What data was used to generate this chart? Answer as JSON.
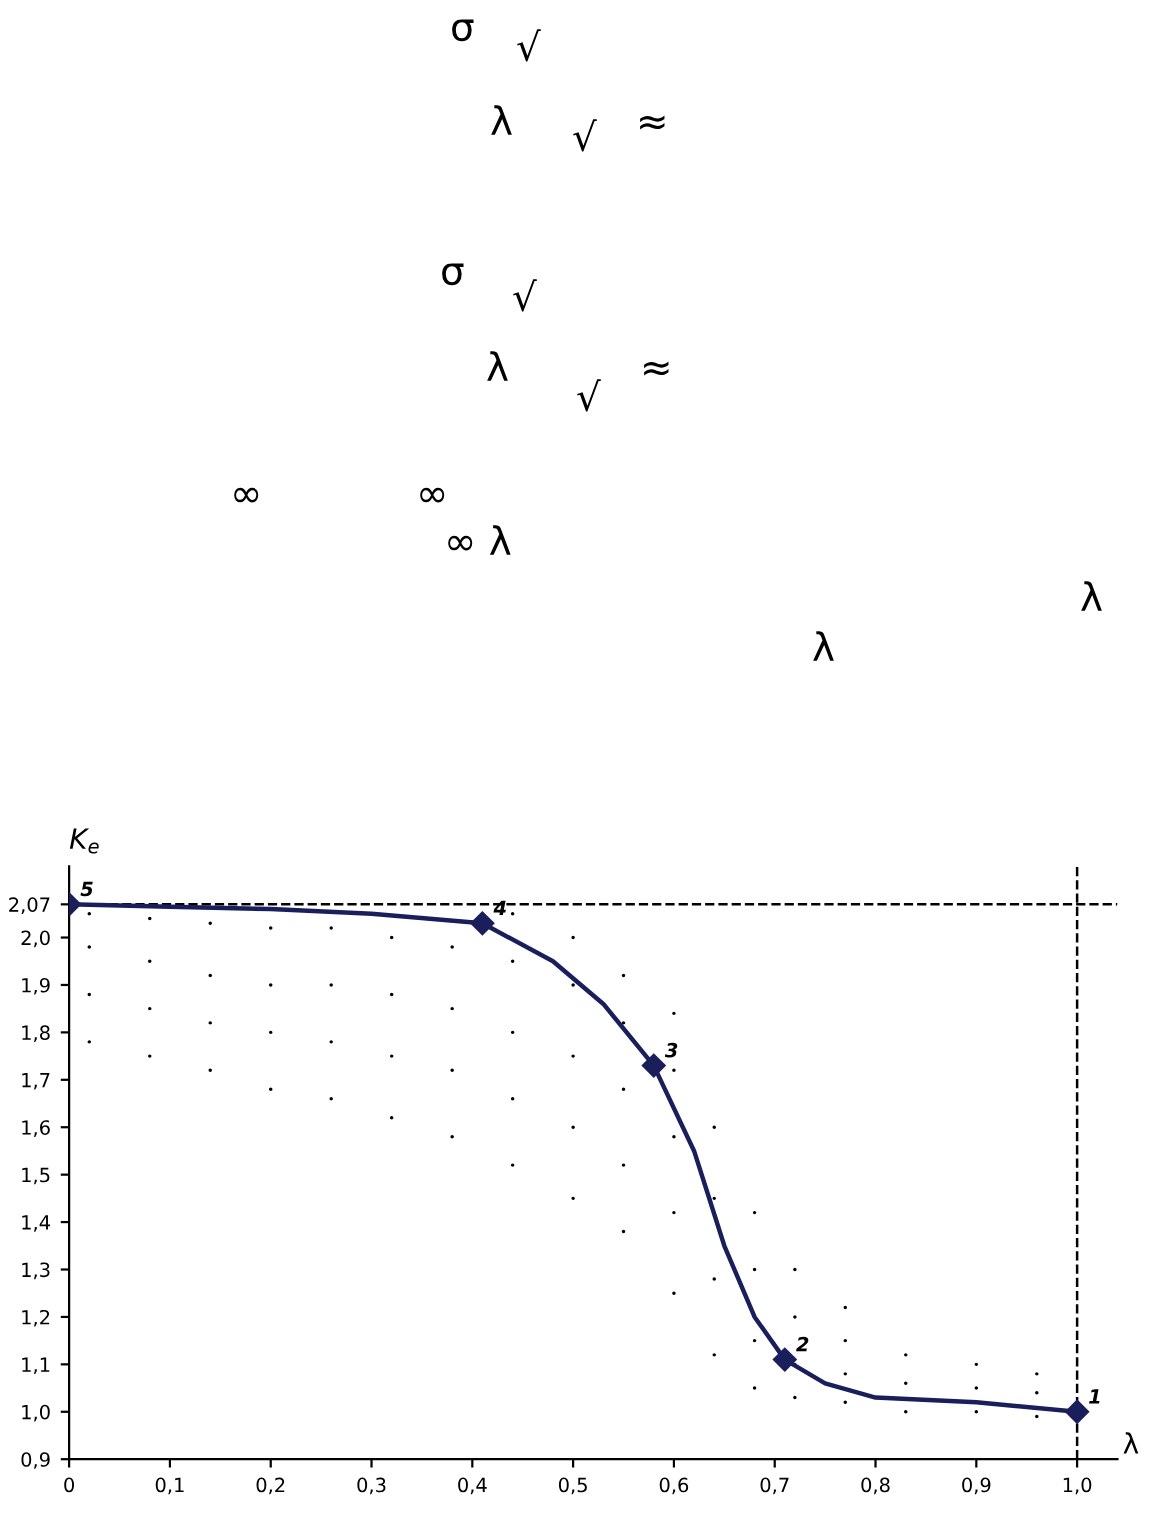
{
  "chart_data": {
    "type": "line",
    "xlabel": "λ",
    "ylabel": "K$_{e}$",
    "annotations": [
      "σ",
      "√",
      "λ",
      "√",
      "≈",
      "σ",
      "√",
      "λ",
      "√",
      "≈",
      "∞",
      "∞",
      "∞ λ",
      "λ",
      "λ",
      {
        "text": "1",
        "x": 1.0,
        "y": 1.0
      },
      {
        "text": "2",
        "x": 0.71,
        "y": 1.11
      },
      {
        "text": "3",
        "x": 0.58,
        "y": 1.73
      },
      {
        "text": "4",
        "x": 0.41,
        "y": 2.03
      },
      {
        "text": "5",
        "x": 0,
        "y": 2.07
      }
    ],
    "xlim": [
      0,
      1.04
    ],
    "ylim": [
      0.9,
      2.15
    ],
    "xticks": [
      0,
      {
        "value": 0.1,
        "label": "0,1"
      },
      {
        "value": 0.2,
        "label": "0,2"
      },
      {
        "value": 0.3,
        "label": "0,3"
      },
      {
        "value": 0.4,
        "label": "0,4"
      },
      {
        "value": 0.5,
        "label": "0,5"
      },
      {
        "value": 0.6,
        "label": "0,6"
      },
      {
        "value": 0.7,
        "label": "0,7"
      },
      {
        "value": 0.8,
        "label": "0,8"
      },
      {
        "value": 0.9,
        "label": "0,9"
      },
      {
        "value": 1.0,
        "label": "1,0"
      }
    ],
    "yticks": [
      {
        "value": 0.9,
        "label": "0,9"
      },
      {
        "value": 1.0,
        "label": "1,0"
      },
      {
        "value": 1.1,
        "label": "1,1"
      },
      {
        "value": 1.2,
        "label": "1,2"
      },
      {
        "value": 1.3,
        "label": "1,3"
      },
      {
        "value": 1.4,
        "label": "1,4"
      },
      {
        "value": 1.5,
        "label": "1,5"
      },
      {
        "value": 1.6,
        "label": "1,6"
      },
      {
        "value": 1.7,
        "label": "1,7"
      },
      {
        "value": 1.8,
        "label": "1,8"
      },
      {
        "value": 1.9,
        "label": "1,9"
      },
      {
        "value": 2.0,
        "label": "2,0"
      },
      {
        "value": 2.07,
        "label": "2,07"
      }
    ],
    "grid": false,
    "legend": false,
    "ref_lines": [
      {
        "axis": "y",
        "value": 2.07,
        "color": "#000000",
        "line_style": "dashed"
      },
      {
        "axis": "x",
        "value": 1.0,
        "color": "#000000",
        "line_style": "dashed"
      }
    ],
    "series": [
      {
        "type": "scatter",
        "color": "#000000",
        "marker": "circle",
        "x": [
          0.02,
          0.02,
          0.02,
          0.02,
          0.08,
          0.08,
          0.08,
          0.08,
          0.14,
          0.14,
          0.14,
          0.14,
          0.2,
          0.2,
          0.2,
          0.2,
          0.26,
          0.26,
          0.26,
          0.26,
          0.32,
          0.32,
          0.32,
          0.32,
          0.38,
          0.38,
          0.38,
          0.38,
          0.44,
          0.44,
          0.44,
          0.44,
          0.44,
          0.5,
          0.5,
          0.5,
          0.5,
          0.5,
          0.55,
          0.55,
          0.55,
          0.55,
          0.55,
          0.6,
          0.6,
          0.6,
          0.6,
          0.6,
          0.64,
          0.64,
          0.64,
          0.64,
          0.68,
          0.68,
          0.68,
          0.68,
          0.72,
          0.72,
          0.72,
          0.72,
          0.77,
          0.77,
          0.77,
          0.77,
          0.83,
          0.83,
          0.83,
          0.9,
          0.9,
          0.9,
          0.96,
          0.96,
          0.96
        ],
        "values": [
          1.78,
          1.88,
          1.98,
          2.05,
          1.75,
          1.85,
          1.95,
          2.04,
          1.72,
          1.82,
          1.92,
          2.03,
          1.68,
          1.8,
          1.9,
          2.02,
          1.66,
          1.78,
          1.9,
          2.02,
          1.62,
          1.75,
          1.88,
          2.0,
          1.58,
          1.72,
          1.85,
          1.98,
          1.52,
          1.66,
          1.8,
          1.95,
          2.05,
          1.45,
          1.6,
          1.75,
          1.9,
          2.0,
          1.38,
          1.52,
          1.68,
          1.82,
          1.92,
          1.25,
          1.42,
          1.58,
          1.72,
          1.84,
          1.12,
          1.28,
          1.45,
          1.6,
          1.05,
          1.15,
          1.3,
          1.42,
          1.03,
          1.1,
          1.2,
          1.3,
          1.02,
          1.08,
          1.15,
          1.22,
          1.0,
          1.06,
          1.12,
          1.0,
          1.05,
          1.1,
          0.99,
          1.04,
          1.08
        ]
      },
      {
        "color": "#1a1f5c",
        "marker": "none",
        "line_style": "solid",
        "x": [
          0,
          0.1,
          0.2,
          0.3,
          0.41,
          0.48,
          0.53,
          0.58,
          0.62,
          0.65,
          0.68,
          0.71,
          0.75,
          0.8,
          0.9,
          1.0
        ],
        "values": [
          2.07,
          2.065,
          2.06,
          2.05,
          2.03,
          1.95,
          1.86,
          1.73,
          1.55,
          1.35,
          1.2,
          1.11,
          1.06,
          1.03,
          1.02,
          1.0
        ]
      },
      {
        "type": "scatter",
        "color": "#1a1f5c",
        "marker": "diamond",
        "x": [
          1.0,
          0.71,
          0.58,
          0.41,
          0
        ],
        "values": [
          1.0,
          1.11,
          1.73,
          2.03,
          2.07
        ]
      }
    ]
  }
}
